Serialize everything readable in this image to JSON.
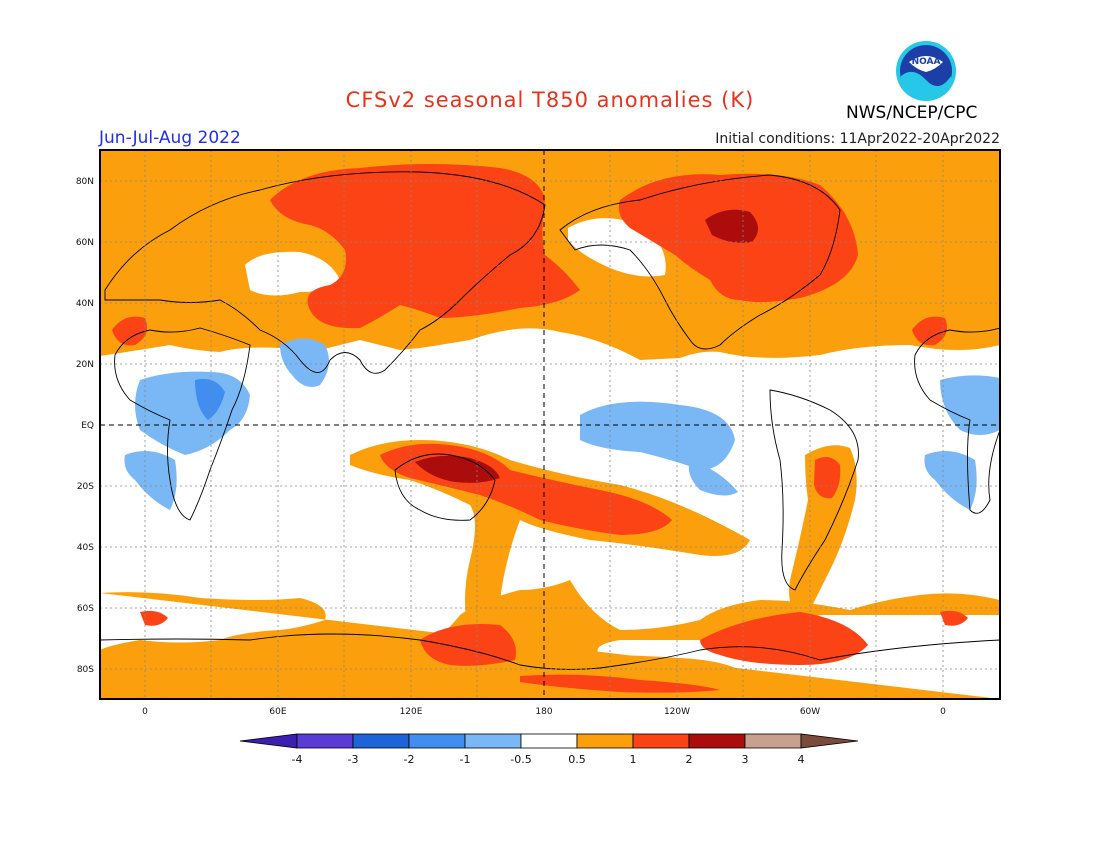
{
  "header": {
    "title": "CFSv2 seasonal T850 anomalies (K)",
    "season": "Jun-Jul-Aug 2022",
    "initial_conditions": "Initial conditions: 11Apr2022-20Apr2022",
    "agency": "NWS/NCEP/CPC",
    "logo_text": "NOAA",
    "logo_icon": "noaa-logo-icon"
  },
  "map": {
    "lat_labels": [
      "80N",
      "60N",
      "40N",
      "20N",
      "EQ",
      "20S",
      "40S",
      "60S",
      "80S"
    ],
    "lon_labels": [
      "0",
      "60E",
      "120E",
      "180",
      "120W",
      "60W",
      "0"
    ],
    "grid": "dotted",
    "reference_lines": [
      "equator",
      "dateline"
    ]
  },
  "colorbar": {
    "labels": [
      "-4",
      "-3",
      "-2",
      "-1",
      "-0.5",
      "0.5",
      "1",
      "2",
      "3",
      "4"
    ],
    "colors": [
      "#3a1fb0",
      "#5a3bd6",
      "#1f63d8",
      "#3f8ef0",
      "#7ab8f5",
      "#ffffff",
      "#fba00c",
      "#fb4316",
      "#ab0d0d",
      "#c7a090",
      "#7a4a3a"
    ]
  },
  "palette": {
    "ocean": "#ffffff",
    "weak_warm": "#fba00c",
    "warm": "#fb4316",
    "strong_warm": "#ab0d0d",
    "weak_cool": "#7ab8f5",
    "cool": "#3f8ef0"
  }
}
